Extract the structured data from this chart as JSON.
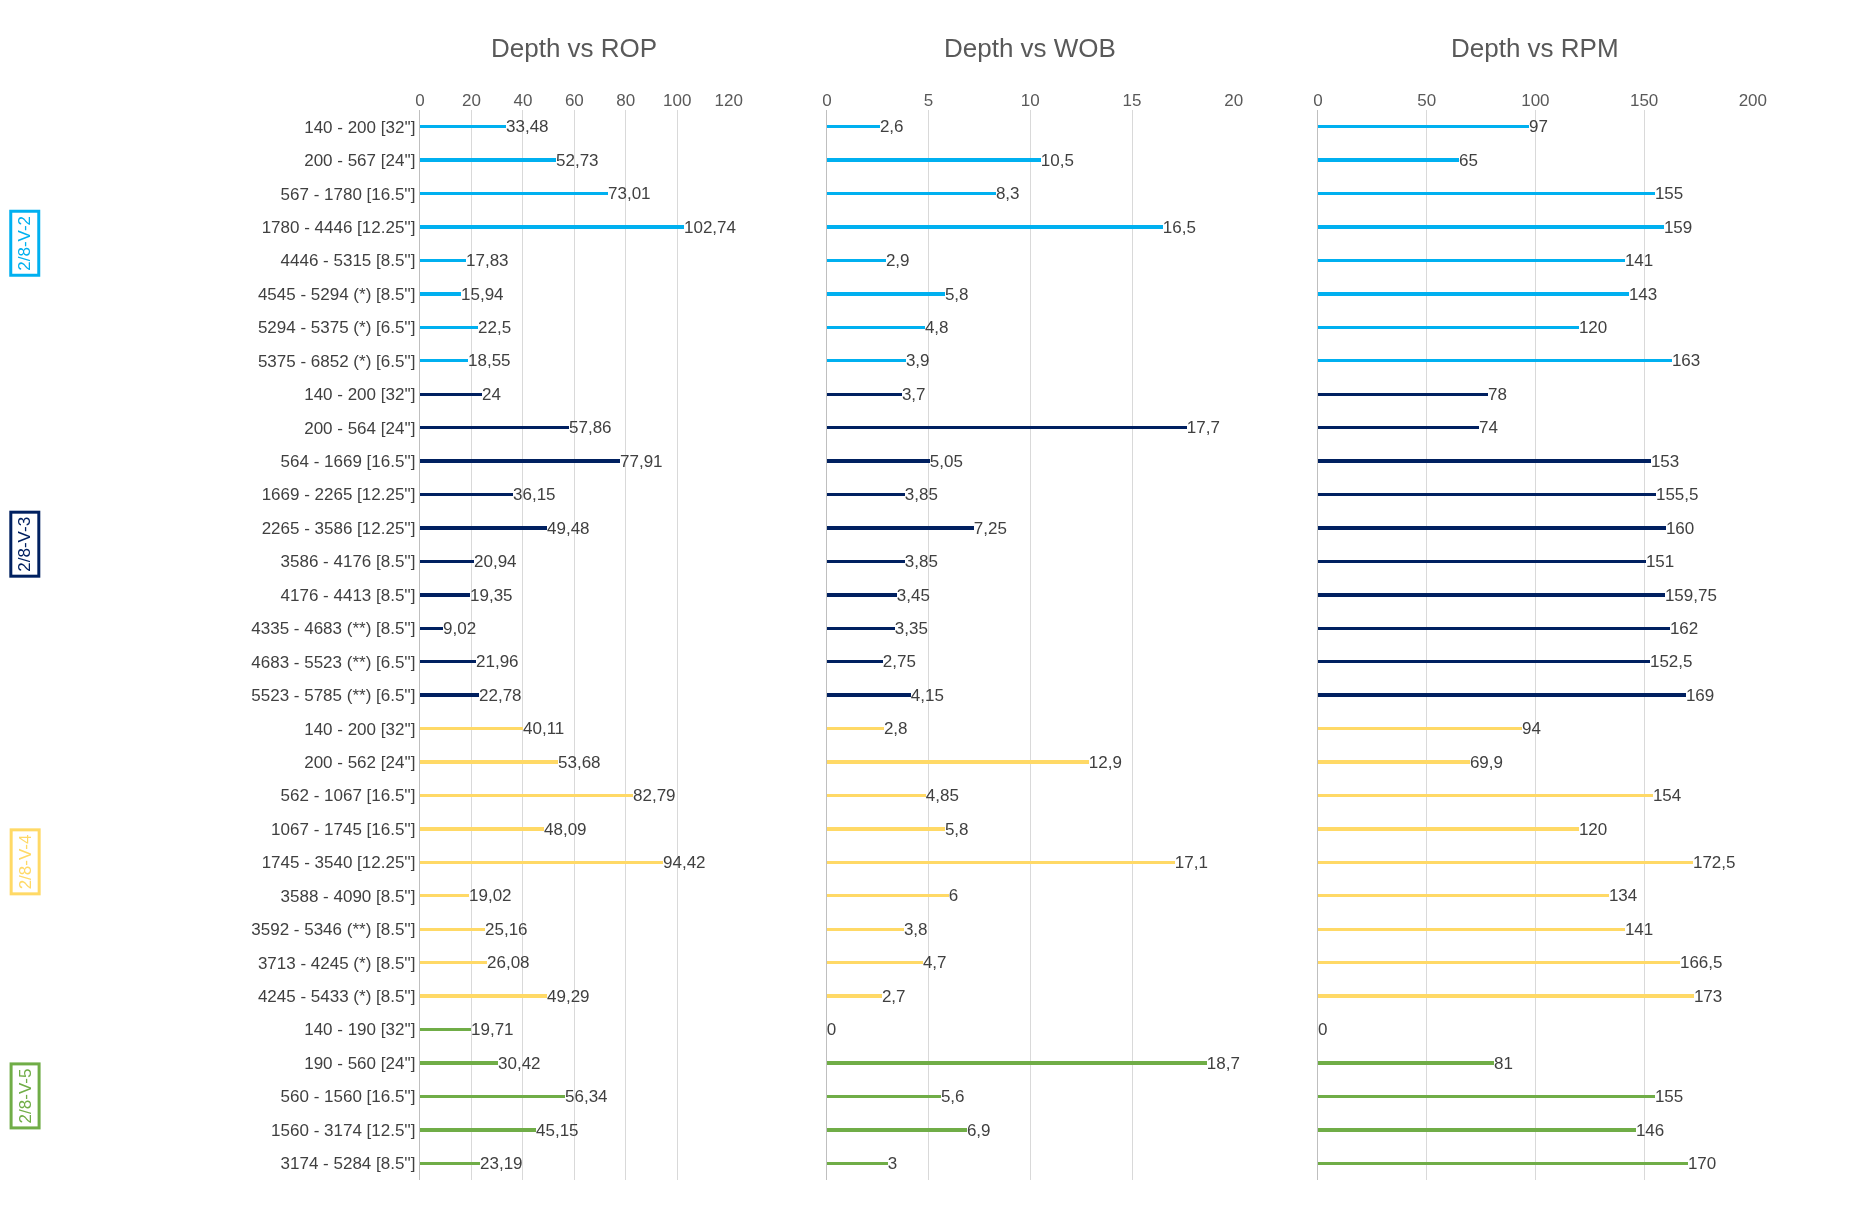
{
  "chart_data": [
    {
      "type": "bar",
      "orientation": "horizontal",
      "title": "Depth vs ROP",
      "grid": "x",
      "xlim": [
        0,
        120
      ],
      "xticks": [
        0,
        20,
        40,
        60,
        80,
        100,
        120
      ],
      "categories": [
        "140 - 200 [32'']",
        "200 - 567 [24'']",
        "567 - 1780 [16.5'']",
        "1780 - 4446 [12.25'']",
        "4446 - 5315 [8.5'']",
        "4545 - 5294 (*) [8.5'']",
        "5294 - 5375 (*) [6.5'']",
        "5375 - 6852 (*) [6.5'']",
        "140 - 200 [32'']",
        "200 - 564 [24'']",
        "564 - 1669 [16.5'']",
        "1669 - 2265 [12.25'']",
        "2265 - 3586 [12.25'']",
        "3586 - 4176 [8.5'']",
        "4176 - 4413 [8.5'']",
        "4335 - 4683 (**) [8.5'']",
        "4683 - 5523 (**) [6.5'']",
        "5523 - 5785 (**) [6.5'']",
        "140 - 200 [32'']",
        "200 - 562 [24'']",
        "562 - 1067 [16.5'']",
        "1067 - 1745 [16.5'']",
        "1745 - 3540 [12.25'']",
        "3588 - 4090 [8.5'']",
        "3592 - 5346 (**) [8.5'']",
        "3713 - 4245 (*) [8.5'']",
        "4245 - 5433 (*) [8.5'']",
        "140 - 190 [32'']",
        "190 - 560 [24'']",
        "560 - 1560 [16.5'']",
        "1560 - 3174 [12.5'']",
        "3174 - 5284 [8.5'']"
      ],
      "series": [
        {
          "name": "2/8-V-2",
          "color": "#00b0f0",
          "values": [
            33.48,
            52.73,
            73.01,
            102.74,
            17.83,
            15.94,
            22.5,
            18.55,
            null,
            null,
            null,
            null,
            null,
            null,
            null,
            null,
            null,
            null,
            null,
            null,
            null,
            null,
            null,
            null,
            null,
            null,
            null,
            null,
            null,
            null,
            null,
            null
          ],
          "value_labels": [
            "33,48",
            "52,73",
            "73,01",
            "102,74",
            "17,83",
            "15,94",
            "22,5",
            "18,55",
            null,
            null,
            null,
            null,
            null,
            null,
            null,
            null,
            null,
            null,
            null,
            null,
            null,
            null,
            null,
            null,
            null,
            null,
            null,
            null,
            null,
            null,
            null,
            null
          ]
        },
        {
          "name": "2/8-V-3",
          "color": "#002060",
          "values": [
            null,
            null,
            null,
            null,
            null,
            null,
            null,
            null,
            24,
            57.86,
            77.91,
            36.15,
            49.48,
            20.94,
            19.35,
            9.02,
            21.96,
            22.78,
            null,
            null,
            null,
            null,
            null,
            null,
            null,
            null,
            null,
            null,
            null,
            null,
            null,
            null
          ],
          "value_labels": [
            null,
            null,
            null,
            null,
            null,
            null,
            null,
            null,
            "24",
            "57,86",
            "77,91",
            "36,15",
            "49,48",
            "20,94",
            "19,35",
            "9,02",
            "21,96",
            "22,78",
            null,
            null,
            null,
            null,
            null,
            null,
            null,
            null,
            null,
            null,
            null,
            null,
            null,
            null
          ]
        },
        {
          "name": "2/8-V-4",
          "color": "#ffd966",
          "values": [
            null,
            null,
            null,
            null,
            null,
            null,
            null,
            null,
            null,
            null,
            null,
            null,
            null,
            null,
            null,
            null,
            null,
            null,
            40.11,
            53.68,
            82.79,
            48.09,
            94.42,
            19.02,
            25.16,
            26.08,
            49.29,
            null,
            null,
            null,
            null,
            null
          ],
          "value_labels": [
            null,
            null,
            null,
            null,
            null,
            null,
            null,
            null,
            null,
            null,
            null,
            null,
            null,
            null,
            null,
            null,
            null,
            null,
            "40,11",
            "53,68",
            "82,79",
            "48,09",
            "94,42",
            "19,02",
            "25,16",
            "26,08",
            "49,29",
            null,
            null,
            null,
            null,
            null
          ]
        },
        {
          "name": "2/8-V-5",
          "color": "#70ad47",
          "values": [
            null,
            null,
            null,
            null,
            null,
            null,
            null,
            null,
            null,
            null,
            null,
            null,
            null,
            null,
            null,
            null,
            null,
            null,
            null,
            null,
            null,
            null,
            null,
            null,
            null,
            null,
            null,
            19.71,
            30.42,
            56.34,
            45.15,
            23.19
          ],
          "value_labels": [
            null,
            null,
            null,
            null,
            null,
            null,
            null,
            null,
            null,
            null,
            null,
            null,
            null,
            null,
            null,
            null,
            null,
            null,
            null,
            null,
            null,
            null,
            null,
            null,
            null,
            null,
            null,
            "19,71",
            "30,42",
            "56,34",
            "45,15",
            "23,19"
          ]
        }
      ]
    },
    {
      "type": "bar",
      "orientation": "horizontal",
      "title": "Depth vs WOB",
      "grid": "x",
      "tick_labels": "x",
      "xlim": [
        0,
        20
      ],
      "xticks": [
        0,
        5,
        10,
        15,
        20
      ],
      "series": [
        {
          "color": "#00b0f0",
          "values": [
            2.6,
            10.5,
            8.3,
            16.5,
            2.9,
            5.8,
            4.8,
            3.9,
            null,
            null,
            null,
            null,
            null,
            null,
            null,
            null,
            null,
            null,
            null,
            null,
            null,
            null,
            null,
            null,
            null,
            null,
            null,
            null,
            null,
            null,
            null,
            null
          ],
          "value_labels": [
            "2,6",
            "10,5",
            "8,3",
            "16,5",
            "2,9",
            "5,8",
            "4,8",
            "3,9",
            null,
            null,
            null,
            null,
            null,
            null,
            null,
            null,
            null,
            null,
            null,
            null,
            null,
            null,
            null,
            null,
            null,
            null,
            null,
            null,
            null,
            null,
            null,
            null
          ]
        },
        {
          "color": "#002060",
          "values": [
            null,
            null,
            null,
            null,
            null,
            null,
            null,
            null,
            3.7,
            17.7,
            5.05,
            3.85,
            7.25,
            3.85,
            3.45,
            3.35,
            2.75,
            4.15,
            null,
            null,
            null,
            null,
            null,
            null,
            null,
            null,
            null,
            null,
            null,
            null,
            null,
            null
          ],
          "value_labels": [
            null,
            null,
            null,
            null,
            null,
            null,
            null,
            null,
            "3,7",
            "17,7",
            "5,05",
            "3,85",
            "7,25",
            "3,85",
            "3,45",
            "3,35",
            "2,75",
            "4,15",
            null,
            null,
            null,
            null,
            null,
            null,
            null,
            null,
            null,
            null,
            null,
            null,
            null,
            null
          ]
        },
        {
          "color": "#ffd966",
          "values": [
            null,
            null,
            null,
            null,
            null,
            null,
            null,
            null,
            null,
            null,
            null,
            null,
            null,
            null,
            null,
            null,
            null,
            null,
            2.8,
            12.9,
            4.85,
            5.8,
            17.1,
            6,
            3.8,
            4.7,
            2.7,
            null,
            null,
            null,
            null,
            null
          ],
          "value_labels": [
            null,
            null,
            null,
            null,
            null,
            null,
            null,
            null,
            null,
            null,
            null,
            null,
            null,
            null,
            null,
            null,
            null,
            null,
            "2,8",
            "12,9",
            "4,85",
            "5,8",
            "17,1",
            "6",
            "3,8",
            "4,7",
            "2,7",
            null,
            null,
            null,
            null,
            null
          ]
        },
        {
          "color": "#70ad47",
          "values": [
            null,
            null,
            null,
            null,
            null,
            null,
            null,
            null,
            null,
            null,
            null,
            null,
            null,
            null,
            null,
            null,
            null,
            null,
            null,
            null,
            null,
            null,
            null,
            null,
            null,
            null,
            null,
            0,
            18.7,
            5.6,
            6.9,
            3
          ],
          "value_labels": [
            null,
            null,
            null,
            null,
            null,
            null,
            null,
            null,
            null,
            null,
            null,
            null,
            null,
            null,
            null,
            null,
            null,
            null,
            null,
            null,
            null,
            null,
            null,
            null,
            null,
            null,
            null,
            "0",
            "18,7",
            "5,6",
            "6,9",
            "3"
          ]
        }
      ]
    },
    {
      "type": "bar",
      "orientation": "horizontal",
      "title": "Depth vs RPM",
      "grid": "x",
      "tick_labels": "x",
      "xlim": [
        0,
        200
      ],
      "xticks": [
        0,
        50,
        100,
        150,
        200
      ],
      "series": [
        {
          "color": "#00b0f0",
          "values": [
            97,
            65,
            155,
            159,
            141,
            143,
            120,
            163,
            null,
            null,
            null,
            null,
            null,
            null,
            null,
            null,
            null,
            null,
            null,
            null,
            null,
            null,
            null,
            null,
            null,
            null,
            null,
            null,
            null,
            null,
            null,
            null
          ],
          "value_labels": [
            "97",
            "65",
            "155",
            "159",
            "141",
            "143",
            "120",
            "163",
            null,
            null,
            null,
            null,
            null,
            null,
            null,
            null,
            null,
            null,
            null,
            null,
            null,
            null,
            null,
            null,
            null,
            null,
            null,
            null,
            null,
            null,
            null,
            null
          ]
        },
        {
          "color": "#002060",
          "values": [
            null,
            null,
            null,
            null,
            null,
            null,
            null,
            null,
            78,
            74,
            153,
            155.5,
            160,
            151,
            159.75,
            162,
            152.5,
            169,
            null,
            null,
            null,
            null,
            null,
            null,
            null,
            null,
            null,
            null,
            null,
            null,
            null,
            null
          ],
          "value_labels": [
            null,
            null,
            null,
            null,
            null,
            null,
            null,
            null,
            "78",
            "74",
            "153",
            "155,5",
            "160",
            "151",
            "159,75",
            "162",
            "152,5",
            "169",
            null,
            null,
            null,
            null,
            null,
            null,
            null,
            null,
            null,
            null,
            null,
            null,
            null,
            null
          ]
        },
        {
          "color": "#ffd966",
          "values": [
            null,
            null,
            null,
            null,
            null,
            null,
            null,
            null,
            null,
            null,
            null,
            null,
            null,
            null,
            null,
            null,
            null,
            null,
            94,
            69.9,
            154,
            120,
            172.5,
            134,
            141,
            166.5,
            173,
            null,
            null,
            null,
            null,
            null
          ],
          "value_labels": [
            null,
            null,
            null,
            null,
            null,
            null,
            null,
            null,
            null,
            null,
            null,
            null,
            null,
            null,
            null,
            null,
            null,
            null,
            "94",
            "69,9",
            "154",
            "120",
            "172,5",
            "134",
            "141",
            "166,5",
            "173",
            null,
            null,
            null,
            null,
            null
          ]
        },
        {
          "color": "#70ad47",
          "values": [
            null,
            null,
            null,
            null,
            null,
            null,
            null,
            null,
            null,
            null,
            null,
            null,
            null,
            null,
            null,
            null,
            null,
            null,
            null,
            null,
            null,
            null,
            null,
            null,
            null,
            null,
            null,
            0,
            81,
            155,
            146,
            170
          ],
          "value_labels": [
            null,
            null,
            null,
            null,
            null,
            null,
            null,
            null,
            null,
            null,
            null,
            null,
            null,
            null,
            null,
            null,
            null,
            null,
            null,
            null,
            null,
            null,
            null,
            null,
            null,
            null,
            null,
            "0",
            "81",
            "155",
            "146",
            "170"
          ]
        }
      ]
    }
  ]
}
